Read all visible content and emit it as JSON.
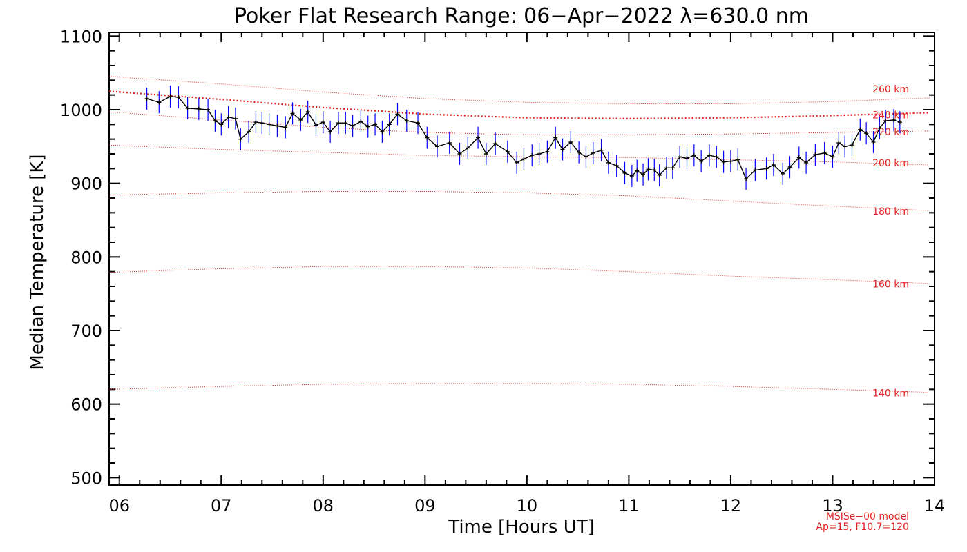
{
  "chart_data": {
    "type": "line",
    "title": "Poker Flat Research Range: 06−Apr−2022 λ=630.0 nm",
    "xlabel": "Time [Hours UT]",
    "ylabel": "Median Temperature [K]",
    "xlim": [
      5.9,
      14
    ],
    "ylim": [
      490,
      1105
    ],
    "x_ticks": [
      6,
      7,
      8,
      9,
      10,
      11,
      12,
      13,
      14
    ],
    "x_tick_labels": [
      "06",
      "07",
      "08",
      "09",
      "10",
      "11",
      "12",
      "13",
      "14"
    ],
    "y_ticks": [
      500,
      600,
      700,
      800,
      900,
      1000,
      1100
    ],
    "y_tick_labels": [
      "500",
      "600",
      "700",
      "800",
      "900",
      "1000",
      "1100"
    ],
    "colors": {
      "data": "#000000",
      "error": "#0000ff",
      "model": "#e02020"
    },
    "series": [
      {
        "name": "Median temperature",
        "x": [
          6.27,
          6.39,
          6.5,
          6.58,
          6.67,
          6.78,
          6.87,
          6.94,
          7.0,
          7.07,
          7.14,
          7.19,
          7.27,
          7.34,
          7.4,
          7.47,
          7.55,
          7.63,
          7.7,
          7.78,
          7.85,
          7.93,
          8.0,
          8.07,
          8.15,
          8.22,
          8.29,
          8.37,
          8.44,
          8.51,
          8.58,
          8.65,
          8.73,
          8.82,
          8.93,
          9.02,
          9.12,
          9.24,
          9.34,
          9.42,
          9.52,
          9.6,
          9.69,
          9.81,
          9.9,
          9.97,
          10.05,
          10.12,
          10.2,
          10.28,
          10.35,
          10.43,
          10.51,
          10.58,
          10.65,
          10.73,
          10.8,
          10.88,
          10.96,
          11.03,
          11.08,
          11.14,
          11.19,
          11.25,
          11.3,
          11.37,
          11.43,
          11.5,
          11.57,
          11.64,
          11.71,
          11.79,
          11.86,
          11.93,
          12.0,
          12.07,
          12.15,
          12.24,
          12.35,
          12.42,
          12.51,
          12.58,
          12.67,
          12.74,
          12.83,
          12.92,
          13.0,
          13.06,
          13.12,
          13.19,
          13.27,
          13.33,
          13.4,
          13.46,
          13.52,
          13.6,
          13.66
        ],
        "y": [
          1015,
          1010,
          1018,
          1017,
          1002,
          1001,
          1000,
          985,
          980,
          990,
          988,
          960,
          970,
          983,
          982,
          980,
          978,
          976,
          995,
          986,
          997,
          979,
          983,
          970,
          982,
          982,
          978,
          984,
          977,
          980,
          970,
          980,
          994,
          985,
          982,
          962,
          950,
          955,
          940,
          948,
          962,
          940,
          954,
          943,
          928,
          933,
          938,
          940,
          943,
          962,
          946,
          956,
          942,
          936,
          941,
          945,
          928,
          924,
          914,
          910,
          917,
          912,
          919,
          918,
          911,
          921,
          921,
          936,
          934,
          938,
          930,
          938,
          936,
          929,
          930,
          932,
          906,
          918,
          920,
          925,
          913,
          922,
          935,
          928,
          939,
          941,
          936,
          955,
          950,
          952,
          973,
          968,
          956,
          975,
          985,
          986,
          983
        ],
        "error": [
          15,
          15,
          15,
          15,
          15,
          15,
          15,
          15,
          15,
          15,
          15,
          15,
          15,
          15,
          15,
          15,
          15,
          15,
          15,
          15,
          15,
          15,
          15,
          15,
          15,
          15,
          15,
          15,
          15,
          15,
          15,
          15,
          15,
          15,
          15,
          15,
          15,
          15,
          15,
          15,
          15,
          15,
          15,
          15,
          15,
          15,
          15,
          15,
          15,
          15,
          15,
          15,
          15,
          15,
          15,
          15,
          15,
          15,
          15,
          15,
          15,
          15,
          15,
          15,
          15,
          15,
          15,
          15,
          15,
          15,
          15,
          15,
          15,
          15,
          15,
          15,
          15,
          15,
          15,
          15,
          15,
          15,
          15,
          15,
          15,
          15,
          15,
          15,
          15,
          15,
          15,
          15,
          15,
          15,
          15,
          15,
          15
        ]
      }
    ],
    "model_curves": [
      {
        "name": "260 km",
        "label": "260 km",
        "x": [
          5.9,
          7,
          8,
          9,
          10,
          11,
          12,
          13,
          13.95
        ],
        "y": [
          1045,
          1035,
          1024,
          1015,
          1010,
          1008,
          1008,
          1011,
          1016
        ]
      },
      {
        "name": "240 km",
        "label": "240 km",
        "x": [
          5.9,
          7,
          8,
          9,
          10,
          11,
          12,
          13,
          13.95
        ],
        "y": [
          1025,
          1014,
          1003,
          994,
          989,
          988,
          989,
          992,
          996
        ],
        "emphasis": true
      },
      {
        "name": "220 km",
        "label": "220 km",
        "x": [
          5.9,
          7,
          8,
          9,
          10,
          11,
          12,
          13,
          13.95
        ],
        "y": [
          997,
          986,
          976,
          969,
          966,
          966,
          967,
          969,
          971
        ]
      },
      {
        "name": "200 km",
        "label": "200 km",
        "x": [
          5.9,
          7,
          8,
          9,
          10,
          11,
          12,
          13,
          13.95
        ],
        "y": [
          952,
          946,
          942,
          938,
          936,
          935,
          932,
          929,
          925
        ]
      },
      {
        "name": "180 km",
        "label": "180 km",
        "x": [
          5.9,
          7,
          8,
          9,
          10,
          11,
          12,
          13,
          13.95
        ],
        "y": [
          884,
          887,
          889,
          889,
          887,
          883,
          876,
          869,
          863
        ]
      },
      {
        "name": "160 km",
        "label": "160 km",
        "x": [
          5.9,
          7,
          8,
          9,
          10,
          11,
          12,
          13,
          13.95
        ],
        "y": [
          779,
          784,
          787,
          787,
          785,
          780,
          774,
          769,
          764
        ]
      },
      {
        "name": "140 km",
        "label": "140 km",
        "x": [
          5.9,
          7,
          8,
          9,
          10,
          11,
          12,
          13,
          13.95
        ],
        "y": [
          620,
          624,
          627,
          628,
          628,
          627,
          624,
          620,
          616
        ]
      }
    ],
    "model_notes": [
      "MSISe−00 model",
      "Ap=15, F10.7=120"
    ]
  }
}
